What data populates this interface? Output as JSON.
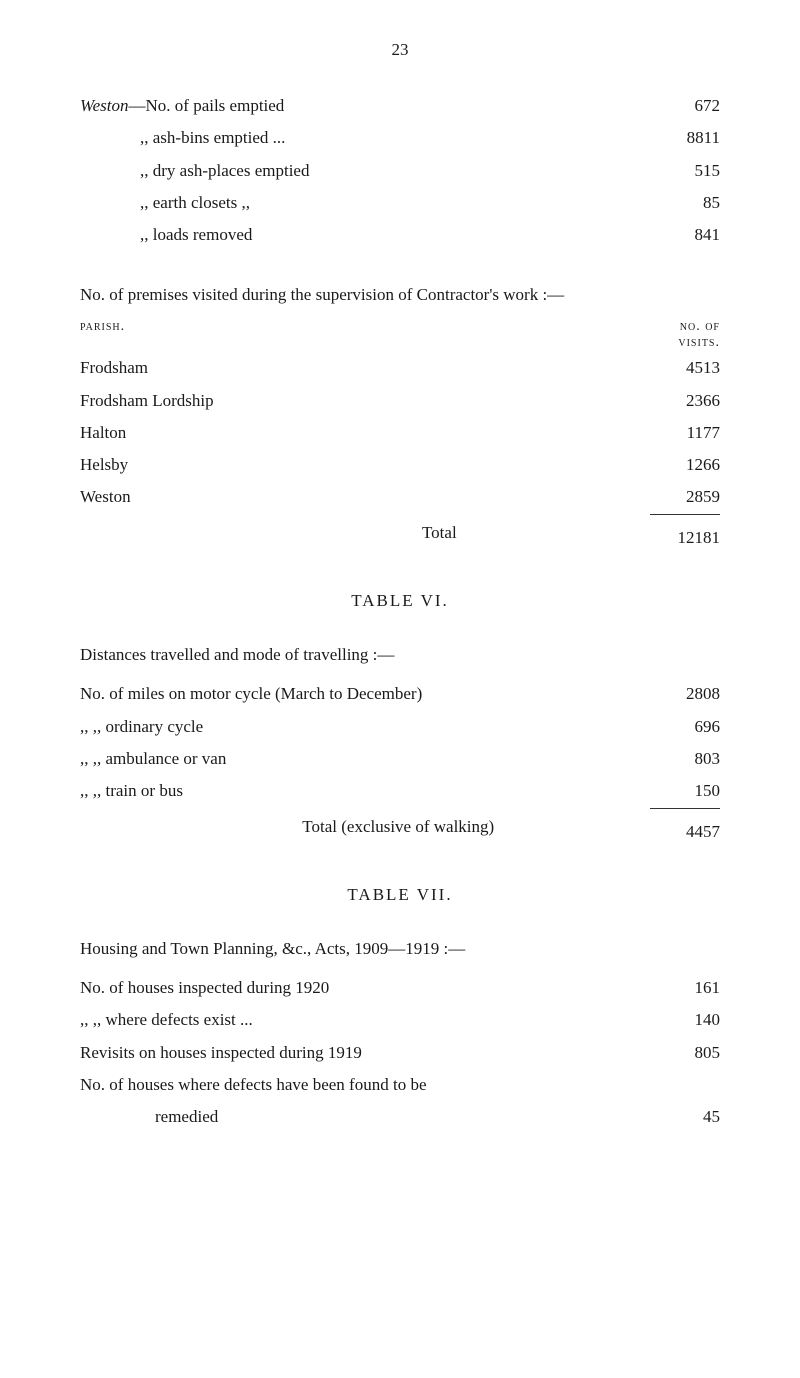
{
  "page_number": "23",
  "weston": {
    "prefix": "Weston",
    "intro": "—No. of pails emptied",
    "rows": [
      {
        "label": ",,    ash-bins emptied ...",
        "value": "8811"
      },
      {
        "label": ",,    dry ash-places emptied",
        "value": "515"
      },
      {
        "label": ",,    earth closets      ,,",
        "value": "85"
      },
      {
        "label": ",,    loads removed",
        "value": "841"
      }
    ],
    "first_value": "672"
  },
  "premises": {
    "title": "No. of premises visited during the supervision of Contractor's work :—",
    "col_left": "parish.",
    "col_right_1": "no. of",
    "col_right_2": "visits.",
    "rows": [
      {
        "label": "Frodsham",
        "value": "4513"
      },
      {
        "label": "Frodsham Lordship",
        "value": "2366"
      },
      {
        "label": "Halton",
        "value": "1177"
      },
      {
        "label": "Helsby",
        "value": "1266"
      },
      {
        "label": "Weston",
        "value": "2859"
      }
    ],
    "total_label": "Total",
    "total_value": "12181"
  },
  "table6": {
    "heading": "TABLE   VI.",
    "intro": "Distances travelled and mode of travelling :—",
    "rows": [
      {
        "label": "No. of miles on motor cycle (March to December)",
        "value": "2808"
      },
      {
        "label": ",,        ,,    ordinary cycle",
        "value": "696"
      },
      {
        "label": ",,        ,,    ambulance or van",
        "value": "803"
      },
      {
        "label": ",,        ,,    train or bus",
        "value": "150"
      }
    ],
    "total_label": "Total (exclusive of walking)",
    "total_value": "4457"
  },
  "table7": {
    "heading": "TABLE   VII.",
    "intro": "Housing and Town Planning, &c., Acts, 1909—1919 :—",
    "rows": [
      {
        "label": "No. of houses inspected during 1920",
        "value": "161"
      },
      {
        "label": ",,      ,,    where defects exist ...",
        "value": "140"
      },
      {
        "label": "Revisits on houses inspected during 1919",
        "value": "805"
      },
      {
        "label": "No. of houses where defects have been found to be",
        "value": ""
      },
      {
        "label": "remedied",
        "value": "45",
        "indent": true
      }
    ]
  }
}
